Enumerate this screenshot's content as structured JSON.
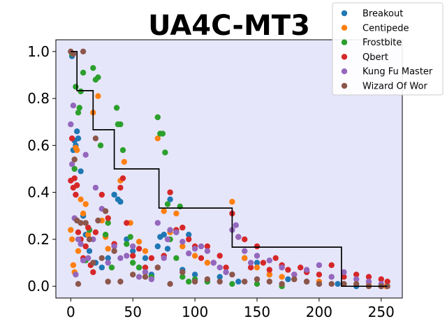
{
  "chart_data": {
    "type": "scatter",
    "title": "UA4C-MT3",
    "xlabel": "",
    "ylabel": "",
    "xlim": [
      -12,
      267
    ],
    "ylim": [
      -0.05,
      1.05
    ],
    "xticks": [
      0,
      50,
      100,
      150,
      200,
      250
    ],
    "xtick_labels": [
      "0",
      "50",
      "100",
      "150",
      "200",
      "250"
    ],
    "yticks": [
      0.0,
      0.2,
      0.4,
      0.6,
      0.8,
      1.0
    ],
    "ytick_labels": [
      "0.0",
      "0.2",
      "0.4",
      "0.6",
      "0.8",
      "1.0"
    ],
    "grid": false,
    "legend_position": "top-right",
    "background": "#e6e6fa",
    "step_line": {
      "color": "#000000",
      "points": [
        [
          0,
          1.0
        ],
        [
          5,
          1.0
        ],
        [
          5,
          0.8333
        ],
        [
          18,
          0.8333
        ],
        [
          18,
          0.6667
        ],
        [
          35,
          0.6667
        ],
        [
          35,
          0.5
        ],
        [
          71,
          0.5
        ],
        [
          71,
          0.3333
        ],
        [
          130,
          0.3333
        ],
        [
          130,
          0.1667
        ],
        [
          218,
          0.1667
        ],
        [
          218,
          0.0
        ],
        [
          255,
          0.0
        ]
      ]
    },
    "series": [
      {
        "name": "Breakout",
        "color": "#1f77b4",
        "x": [
          1,
          2,
          3,
          4,
          5,
          6,
          8,
          10,
          12,
          15,
          20,
          25,
          30,
          35,
          38,
          40,
          45,
          50,
          55,
          60,
          65,
          70,
          72,
          75,
          78,
          80,
          85,
          90,
          95,
          100,
          110,
          120,
          135,
          140,
          150,
          160,
          175,
          190,
          200,
          215,
          230,
          250
        ],
        "y": [
          0.98,
          0.58,
          0.62,
          0.6,
          0.66,
          0.63,
          0.49,
          0.3,
          0.22,
          0.15,
          0.1,
          0.08,
          0.12,
          0.39,
          0.37,
          0.36,
          0.2,
          0.15,
          0.08,
          0.12,
          0.05,
          0.17,
          0.21,
          0.22,
          0.16,
          0.37,
          0.23,
          0.07,
          0.22,
          0.05,
          0.02,
          0.04,
          0.02,
          0.12,
          0.1,
          0.05,
          0.03,
          0.02,
          0.01,
          0.01,
          0.0,
          0.0
        ]
      },
      {
        "name": "Centipede",
        "color": "#ff7f0e",
        "x": [
          0,
          1,
          2,
          3,
          4,
          5,
          6,
          8,
          10,
          12,
          14,
          18,
          22,
          25,
          28,
          30,
          40,
          43,
          48,
          55,
          60,
          70,
          75,
          80,
          85,
          90,
          100,
          110,
          130,
          140,
          150,
          160,
          170,
          180,
          200,
          220,
          240,
          254
        ],
        "y": [
          0.24,
          0.2,
          0.09,
          0.06,
          0.59,
          0.58,
          0.15,
          0.37,
          0.31,
          0.35,
          0.22,
          0.74,
          0.81,
          0.28,
          0.21,
          0.16,
          0.45,
          0.53,
          0.27,
          0.19,
          0.15,
          0.63,
          0.32,
          0.23,
          0.31,
          0.17,
          0.13,
          0.1,
          0.36,
          0.12,
          0.08,
          0.05,
          0.04,
          0.03,
          0.02,
          0.01,
          0.01,
          0.0
        ]
      },
      {
        "name": "Frostbite",
        "color": "#2ca02c",
        "x": [
          1,
          3,
          4,
          6,
          7,
          8,
          10,
          12,
          15,
          18,
          20,
          22,
          24,
          28,
          30,
          33,
          37,
          38,
          40,
          42,
          45,
          48,
          50,
          55,
          60,
          65,
          70,
          72,
          74,
          76,
          78,
          80,
          85,
          88,
          90,
          95,
          100,
          110,
          130,
          150,
          170
        ],
        "y": [
          0.99,
          0.5,
          0.85,
          0.74,
          0.76,
          0.83,
          0.91,
          0.11,
          0.24,
          0.93,
          0.88,
          0.89,
          0.6,
          0.22,
          0.27,
          0.08,
          0.76,
          0.69,
          0.69,
          0.58,
          0.18,
          0.21,
          0.1,
          0.08,
          0.06,
          0.04,
          0.72,
          0.65,
          0.65,
          0.57,
          0.35,
          0.2,
          0.12,
          0.34,
          0.04,
          0.02,
          0.03,
          0.02,
          0.01,
          0.01,
          0.0
        ]
      },
      {
        "name": "Qbert",
        "color": "#d62728",
        "x": [
          0,
          1,
          2,
          3,
          4,
          5,
          6,
          8,
          10,
          12,
          14,
          16,
          18,
          20,
          25,
          30,
          35,
          40,
          42,
          45,
          50,
          55,
          60,
          65,
          70,
          75,
          80,
          85,
          90,
          95,
          100,
          105,
          110,
          115,
          120,
          125,
          130,
          135,
          140,
          145,
          150,
          155,
          160,
          165,
          170,
          175,
          180,
          185,
          190,
          200,
          210,
          220,
          230,
          240,
          250,
          255
        ],
        "y": [
          0.45,
          0.63,
          0.42,
          0.46,
          0.39,
          0.43,
          0.23,
          0.2,
          0.12,
          0.17,
          0.25,
          0.09,
          0.06,
          0.23,
          0.39,
          0.29,
          0.18,
          0.42,
          0.46,
          0.27,
          0.13,
          0.16,
          0.08,
          0.12,
          0.08,
          0.13,
          0.4,
          0.24,
          0.25,
          0.2,
          0.17,
          0.12,
          0.17,
          0.1,
          0.13,
          0.08,
          0.31,
          0.21,
          0.2,
          0.08,
          0.17,
          0.1,
          0.07,
          0.12,
          0.09,
          0.07,
          0.05,
          0.08,
          0.06,
          0.05,
          0.09,
          0.04,
          0.05,
          0.04,
          0.03,
          0.02
        ]
      },
      {
        "name": "Kung Fu Master",
        "color": "#9467bd",
        "x": [
          0,
          1,
          2,
          3,
          4,
          6,
          8,
          10,
          12,
          14,
          18,
          20,
          25,
          30,
          35,
          40,
          45,
          50,
          55,
          60,
          65,
          70,
          75,
          78,
          80,
          85,
          90,
          95,
          100,
          105,
          110,
          115,
          120,
          125,
          130,
          133,
          135,
          140,
          145,
          150,
          160,
          170,
          180,
          190,
          200,
          210,
          220,
          230,
          240,
          250
        ],
        "y": [
          0.69,
          0.52,
          0.77,
          0.29,
          0.05,
          0.2,
          0.18,
          0.11,
          0.56,
          0.12,
          0.2,
          0.42,
          0.33,
          0.1,
          0.17,
          0.12,
          0.13,
          0.17,
          0.04,
          0.06,
          0.03,
          0.27,
          0.12,
          0.2,
          0.24,
          0.23,
          0.19,
          0.14,
          0.16,
          0.17,
          0.15,
          0.1,
          0.08,
          0.06,
          0.24,
          0.26,
          0.21,
          0.15,
          0.1,
          0.13,
          0.11,
          0.08,
          0.05,
          0.07,
          0.09,
          0.04,
          0.06,
          0.03,
          0.02,
          0.01
        ]
      },
      {
        "name": "Wizard Of Wor",
        "color": "#8c564b",
        "x": [
          0,
          2,
          3,
          5,
          6,
          8,
          10,
          12,
          15,
          18,
          20,
          22,
          25,
          28,
          30,
          35,
          40,
          50,
          60,
          70,
          80,
          90,
          100,
          110,
          120,
          130,
          140,
          150,
          160,
          170,
          180,
          190,
          200,
          210,
          220,
          230,
          240,
          250,
          255
        ],
        "y": [
          1.0,
          0.99,
          0.54,
          0.28,
          0.01,
          0.27,
          1.0,
          0.27,
          0.2,
          0.1,
          0.63,
          0.28,
          0.12,
          0.32,
          0.02,
          0.15,
          0.02,
          0.05,
          0.04,
          0.08,
          0.01,
          0.06,
          0.02,
          0.03,
          0.02,
          0.05,
          0.02,
          0.03,
          0.02,
          0.01,
          0.03,
          0.02,
          0.01,
          0.01,
          0.01,
          0.01,
          0.0,
          0.0,
          0.0
        ]
      }
    ]
  }
}
